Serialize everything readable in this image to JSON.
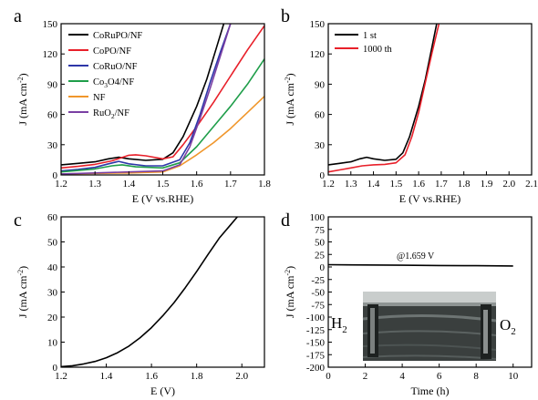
{
  "figure": {
    "panels": [
      "a",
      "b",
      "c",
      "d"
    ]
  },
  "chart_data": [
    {
      "panel": "a",
      "type": "line",
      "xlabel": "E (V vs.RHE)",
      "ylabel_main": "J (mA cm",
      "ylabel_sup": "-2",
      "ylabel_end": ")",
      "xlim": [
        1.2,
        1.8
      ],
      "ylim": [
        0,
        150
      ],
      "xticks": [
        "1.2",
        "1.3",
        "1.4",
        "1.5",
        "1.6",
        "1.7",
        "1.8"
      ],
      "yticks": [
        "0",
        "30",
        "60",
        "90",
        "120",
        "150"
      ],
      "legend_position": "top-left",
      "series": [
        {
          "name": "CoRuPO/NF",
          "name_main": "CoRuPO/NF",
          "name_sub": "",
          "name_tail": "",
          "color": "#000000",
          "points": [
            [
              1.2,
              10
            ],
            [
              1.25,
              11.5
            ],
            [
              1.3,
              13
            ],
            [
              1.34,
              16
            ],
            [
              1.37,
              17.5
            ],
            [
              1.4,
              16
            ],
            [
              1.45,
              14.5
            ],
            [
              1.5,
              15.5
            ],
            [
              1.53,
              22
            ],
            [
              1.56,
              38
            ],
            [
              1.6,
              68
            ],
            [
              1.63,
              95
            ],
            [
              1.66,
              128
            ],
            [
              1.68,
              150
            ]
          ]
        },
        {
          "name": "CoPO/NF",
          "name_main": "CoPO/NF",
          "name_sub": "",
          "name_tail": "",
          "color": "#e8202a",
          "points": [
            [
              1.2,
              7
            ],
            [
              1.25,
              8.5
            ],
            [
              1.3,
              10.5
            ],
            [
              1.35,
              14
            ],
            [
              1.4,
              19.5
            ],
            [
              1.42,
              20
            ],
            [
              1.45,
              19
            ],
            [
              1.5,
              16
            ],
            [
              1.53,
              18
            ],
            [
              1.56,
              30
            ],
            [
              1.6,
              48
            ],
            [
              1.65,
              72
            ],
            [
              1.7,
              98
            ],
            [
              1.75,
              124
            ],
            [
              1.8,
              148
            ]
          ]
        },
        {
          "name": "CoRuO/NF",
          "name_main": "CoRuO/NF",
          "name_sub": "",
          "name_tail": "",
          "color": "#2d36a8",
          "points": [
            [
              1.2,
              4
            ],
            [
              1.25,
              5.5
            ],
            [
              1.3,
              7.5
            ],
            [
              1.34,
              11
            ],
            [
              1.37,
              13.5
            ],
            [
              1.4,
              11
            ],
            [
              1.45,
              9
            ],
            [
              1.5,
              9
            ],
            [
              1.55,
              15
            ],
            [
              1.58,
              32
            ],
            [
              1.61,
              60
            ],
            [
              1.64,
              92
            ],
            [
              1.67,
              122
            ],
            [
              1.7,
              150
            ]
          ]
        },
        {
          "name": "Co3O4/NF",
          "name_main": "Co",
          "name_sub": "3",
          "name_tail": "O4/NF",
          "color": "#1f9e4a",
          "points": [
            [
              1.2,
              3
            ],
            [
              1.3,
              6
            ],
            [
              1.35,
              9
            ],
            [
              1.38,
              10
            ],
            [
              1.42,
              8
            ],
            [
              1.5,
              7
            ],
            [
              1.55,
              12
            ],
            [
              1.6,
              28
            ],
            [
              1.65,
              48
            ],
            [
              1.7,
              68
            ],
            [
              1.75,
              90
            ],
            [
              1.8,
              115
            ]
          ]
        },
        {
          "name": "NF",
          "name_main": "NF",
          "name_sub": "",
          "name_tail": "",
          "color": "#f0962b",
          "points": [
            [
              1.2,
              1
            ],
            [
              1.3,
              1.5
            ],
            [
              1.4,
              2
            ],
            [
              1.5,
              3
            ],
            [
              1.55,
              9
            ],
            [
              1.6,
              20
            ],
            [
              1.65,
              32
            ],
            [
              1.7,
              46
            ],
            [
              1.75,
              62
            ],
            [
              1.8,
              78
            ]
          ]
        },
        {
          "name": "RuO2/NF",
          "name_main": "RuO",
          "name_sub": "2",
          "name_tail": "/NF",
          "color": "#7a3fa3",
          "points": [
            [
              1.2,
              1
            ],
            [
              1.3,
              2
            ],
            [
              1.4,
              3
            ],
            [
              1.5,
              4
            ],
            [
              1.55,
              10
            ],
            [
              1.58,
              28
            ],
            [
              1.61,
              56
            ],
            [
              1.64,
              86
            ],
            [
              1.67,
              118
            ],
            [
              1.7,
              150
            ]
          ]
        }
      ]
    },
    {
      "panel": "b",
      "type": "line",
      "xlabel": "E (V vs.RHE)",
      "ylabel_main": "J (mA cm",
      "ylabel_sup": "-2",
      "ylabel_end": ")",
      "xlim": [
        1.2,
        2.1
      ],
      "ylim": [
        0,
        150
      ],
      "xticks": [
        "1.2",
        "1.3",
        "1.4",
        "1.5",
        "1.6",
        "1.7",
        "1.8",
        "1.9",
        "2.0",
        "2.1"
      ],
      "yticks": [
        "0",
        "30",
        "60",
        "90",
        "120",
        "150"
      ],
      "legend_position": "top-left",
      "series": [
        {
          "name": "1 st",
          "color": "#000000",
          "points": [
            [
              1.2,
              10
            ],
            [
              1.25,
              11.5
            ],
            [
              1.3,
              13
            ],
            [
              1.34,
              16
            ],
            [
              1.37,
              17.5
            ],
            [
              1.4,
              16
            ],
            [
              1.45,
              14.5
            ],
            [
              1.5,
              15.5
            ],
            [
              1.53,
              22
            ],
            [
              1.56,
              38
            ],
            [
              1.6,
              68
            ],
            [
              1.63,
              95
            ],
            [
              1.66,
              128
            ],
            [
              1.68,
              150
            ]
          ]
        },
        {
          "name": "1000 th",
          "color": "#e8202a",
          "points": [
            [
              1.2,
              3
            ],
            [
              1.25,
              5
            ],
            [
              1.3,
              7
            ],
            [
              1.35,
              9
            ],
            [
              1.4,
              10
            ],
            [
              1.45,
              10.5
            ],
            [
              1.5,
              12
            ],
            [
              1.54,
              20
            ],
            [
              1.57,
              38
            ],
            [
              1.6,
              62
            ],
            [
              1.63,
              92
            ],
            [
              1.66,
              122
            ],
            [
              1.69,
              150
            ]
          ]
        }
      ]
    },
    {
      "panel": "c",
      "type": "line",
      "xlabel": "E (V)",
      "ylabel_main": "J (mA cm",
      "ylabel_sup": "-2",
      "ylabel_end": ")",
      "xlim": [
        1.2,
        2.1
      ],
      "ylim": [
        0,
        60
      ],
      "xticks": [
        "1.2",
        "1.4",
        "1.6",
        "1.8",
        "2.0"
      ],
      "yticks": [
        "0",
        "10",
        "20",
        "30",
        "40",
        "50",
        "60"
      ],
      "series": [
        {
          "name": "",
          "color": "#000000",
          "points": [
            [
              1.2,
              0.2
            ],
            [
              1.25,
              0.6
            ],
            [
              1.3,
              1.3
            ],
            [
              1.35,
              2.3
            ],
            [
              1.4,
              3.8
            ],
            [
              1.45,
              5.8
            ],
            [
              1.5,
              8.4
            ],
            [
              1.55,
              11.8
            ],
            [
              1.6,
              15.8
            ],
            [
              1.65,
              20.5
            ],
            [
              1.7,
              25.8
            ],
            [
              1.75,
              31.8
            ],
            [
              1.8,
              38.2
            ],
            [
              1.85,
              45
            ],
            [
              1.9,
              51.5
            ],
            [
              1.95,
              56.8
            ],
            [
              1.98,
              60
            ]
          ]
        }
      ]
    },
    {
      "panel": "d",
      "type": "line",
      "xlabel": "Time (h)",
      "ylabel_main": "J (mA cm",
      "ylabel_sup": "-2",
      "ylabel_end": ")",
      "xlim": [
        0,
        11
      ],
      "ylim": [
        -200,
        100
      ],
      "xticks": [
        "0",
        "2",
        "4",
        "6",
        "8",
        "10"
      ],
      "yticks": [
        "100",
        "75",
        "50",
        "25",
        "0",
        "-25",
        "-50",
        "-75",
        "-100",
        "-125",
        "-150",
        "-175",
        "-200"
      ],
      "annotation": "@1.659 V",
      "inset_labels": {
        "left_main": "H",
        "left_sub": "2",
        "right_main": "O",
        "right_sub": "2"
      },
      "series": [
        {
          "name": "",
          "color": "#000000",
          "points": [
            [
              0,
              4.5
            ],
            [
              2,
              4
            ],
            [
              4,
              3.5
            ],
            [
              6,
              3
            ],
            [
              8,
              2.5
            ],
            [
              10,
              2
            ]
          ]
        }
      ]
    }
  ]
}
